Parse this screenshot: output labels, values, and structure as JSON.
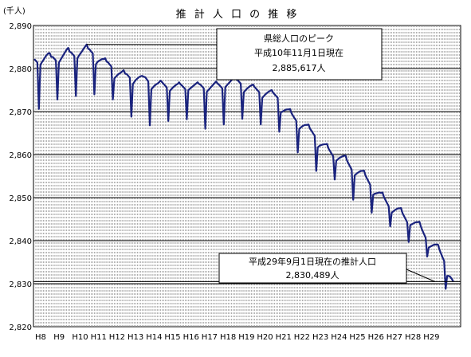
{
  "chart_data": {
    "type": "line",
    "title": "推 計 人 口 の 推 移",
    "unit_label": "(千人)",
    "ylim": [
      2820,
      2890
    ],
    "y_ticks": [
      2820,
      2830,
      2840,
      2850,
      2860,
      2870,
      2880,
      2890
    ],
    "y_tick_labels": [
      "2,820",
      "2,830",
      "2,840",
      "2,850",
      "2,860",
      "2,870",
      "2,880",
      "2,890"
    ],
    "x_start": "1996-01",
    "x_ticks": [
      "H8",
      "H9",
      "H10",
      "H11",
      "H12",
      "H13",
      "H14",
      "H15",
      "H16",
      "H17",
      "H18",
      "H19",
      "H20",
      "H21",
      "H22",
      "H23",
      "H24",
      "H25",
      "H26",
      "H27",
      "H28",
      "H29"
    ],
    "grid": {
      "horizontal": true,
      "vertical_dashed": true
    },
    "series": [
      {
        "color": "#1a237e",
        "monthly_values": [
          2882.2,
          2881.8,
          2881.4,
          2870.6,
          2880.9,
          2881.5,
          2882.0,
          2882.6,
          2883.1,
          2883.5,
          2883.6,
          2882.7,
          2882.7,
          2882.3,
          2881.9,
          2872.8,
          2881.4,
          2882.0,
          2882.6,
          2883.2,
          2883.8,
          2884.4,
          2884.8,
          2883.9,
          2883.7,
          2883.3,
          2882.9,
          2873.6,
          2882.4,
          2883.0,
          2883.5,
          2884.0,
          2884.6,
          2885.1,
          2885.6,
          2884.6,
          2884.4,
          2883.9,
          2883.5,
          2874.0,
          2881.0,
          2881.5,
          2881.8,
          2882.0,
          2882.2,
          2882.2,
          2882.4,
          2881.6,
          2881.4,
          2880.9,
          2880.5,
          2872.8,
          2877.7,
          2878.1,
          2878.5,
          2878.8,
          2879.0,
          2879.3,
          2879.6,
          2878.8,
          2878.7,
          2878.3,
          2877.9,
          2868.8,
          2876.4,
          2876.9,
          2877.4,
          2877.7,
          2878.0,
          2878.2,
          2878.3,
          2878.1,
          2878.0,
          2877.5,
          2877.0,
          2866.8,
          2875.2,
          2875.6,
          2876.0,
          2876.3,
          2876.5,
          2876.8,
          2877.2,
          2876.8,
          2876.4,
          2876.0,
          2875.6,
          2867.8,
          2874.8,
          2875.2,
          2875.6,
          2875.9,
          2876.2,
          2876.4,
          2876.8,
          2876.3,
          2876.0,
          2875.6,
          2875.2,
          2868.2,
          2875.0,
          2875.3,
          2875.6,
          2875.9,
          2876.2,
          2876.5,
          2876.8,
          2876.4,
          2876.2,
          2875.8,
          2875.4,
          2866.0,
          2874.6,
          2875.0,
          2875.4,
          2875.8,
          2876.2,
          2876.6,
          2877.0,
          2876.5,
          2876.2,
          2875.8,
          2875.4,
          2867.0,
          2875.7,
          2876.1,
          2876.5,
          2876.9,
          2877.3,
          2877.7,
          2878.0,
          2877.5,
          2877.3,
          2876.9,
          2876.5,
          2868.3,
          2874.5,
          2874.9,
          2875.3,
          2875.6,
          2875.9,
          2876.1,
          2876.3,
          2875.7,
          2875.3,
          2874.9,
          2874.5,
          2867.0,
          2873.2,
          2873.6,
          2874.0,
          2874.3,
          2874.6,
          2874.8,
          2875.0,
          2874.4,
          2874.0,
          2873.6,
          2873.2,
          2865.3,
          2869.8,
          2870.0,
          2870.2,
          2870.4,
          2870.5,
          2870.5,
          2870.6,
          2869.6,
          2869.0,
          2868.4,
          2867.9,
          2860.5,
          2866.0,
          2866.3,
          2866.6,
          2866.8,
          2866.9,
          2866.9,
          2867.0,
          2866.0,
          2865.5,
          2864.9,
          2864.4,
          2856.2,
          2861.7,
          2862.0,
          2862.2,
          2862.3,
          2862.4,
          2862.4,
          2862.5,
          2861.4,
          2860.8,
          2860.2,
          2859.6,
          2854.2,
          2858.6,
          2858.9,
          2859.2,
          2859.4,
          2859.6,
          2859.7,
          2859.8,
          2858.6,
          2857.9,
          2857.2,
          2856.5,
          2849.5,
          2855.2,
          2855.5,
          2855.8,
          2856.0,
          2856.2,
          2856.2,
          2856.3,
          2855.1,
          2854.4,
          2853.7,
          2853.0,
          2846.5,
          2850.7,
          2850.9,
          2851.0,
          2851.1,
          2851.2,
          2851.1,
          2851.2,
          2850.1,
          2849.4,
          2848.7,
          2848.0,
          2843.3,
          2846.5,
          2846.8,
          2847.1,
          2847.3,
          2847.5,
          2847.5,
          2847.6,
          2846.4,
          2845.7,
          2845.0,
          2844.3,
          2839.7,
          2843.6,
          2843.8,
          2844.0,
          2844.2,
          2844.3,
          2844.3,
          2844.4,
          2843.2,
          2842.3,
          2841.5,
          2840.7,
          2836.3,
          2838.4,
          2838.6,
          2838.8,
          2839.0,
          2839.1,
          2839.1,
          2839.1,
          2837.9,
          2837.0,
          2836.1,
          2835.3,
          2828.8,
          2831.8,
          2831.8,
          2831.6,
          2831.1,
          2830.5
        ]
      }
    ],
    "annotations": [
      {
        "id": "peak",
        "lines": [
          "県総人口のピーク",
          "平成10年11月1日現在",
          "2,885,617人"
        ],
        "point": {
          "date": "1998-11",
          "value": 2885.617
        }
      },
      {
        "id": "latest",
        "lines": [
          "平成29年9月1日現在の推計人口",
          "2,830,489人"
        ],
        "point": {
          "date": "2017-09",
          "value": 2830.489
        }
      }
    ]
  }
}
